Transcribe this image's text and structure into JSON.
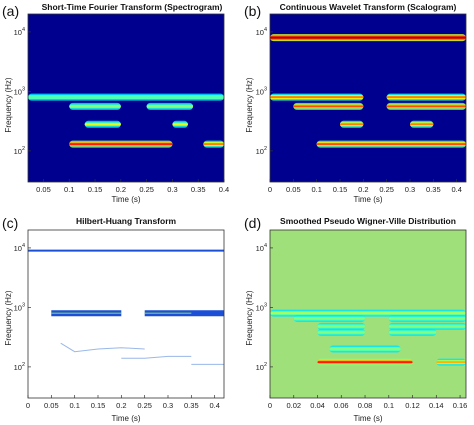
{
  "panels": [
    {
      "letter": "(a)",
      "title": "Short-Time Fourier Transform (Spectrogram)",
      "ylabel": "Frequency (Hz)",
      "xlabel": "Time (s)",
      "ytick_labels": [
        "10^4",
        "10^3",
        "10^2"
      ],
      "xtick_labels": [
        "0.05",
        "0.1",
        "0.15",
        "0.2",
        "0.25",
        "0.3",
        "0.35",
        "0.4"
      ]
    },
    {
      "letter": "(b)",
      "title": "Continuous Wavelet Transform (Scalogram)",
      "ylabel": "Frequency (Hz)",
      "xlabel": "Time (s)",
      "ytick_labels": [
        "10^4",
        "10^3",
        "10^2"
      ],
      "xtick_labels": [
        "0",
        "0.05",
        "0.1",
        "0.15",
        "0.2",
        "0.25",
        "0.3",
        "0.35",
        "0.4"
      ]
    },
    {
      "letter": "(c)",
      "title": "Hilbert-Huang Transform",
      "ylabel": "Frequency (Hz)",
      "xlabel": "Time (s)",
      "ytick_labels": [
        "10^4",
        "10^3",
        "10^2"
      ],
      "xtick_labels": [
        "0",
        "0.05",
        "0.1",
        "0.15",
        "0.2",
        "0.25",
        "0.3",
        "0.35",
        "0.4"
      ]
    },
    {
      "letter": "(d)",
      "title": "Smoothed Pseudo Wigner-Ville Distribution",
      "ylabel": "Frequency (Hz)",
      "xlabel": "Time (s)",
      "ytick_labels": [
        "10^4",
        "10^3",
        "10^2"
      ],
      "xtick_labels": [
        "0",
        "0.02",
        "0.04",
        "0.06",
        "0.08",
        "0.1",
        "0.12",
        "0.14",
        "0.16"
      ]
    }
  ],
  "chart_data": [
    {
      "type": "heatmap",
      "title": "Short-Time Fourier Transform (Spectrogram)",
      "xlabel": "Time (s)",
      "ylabel": "Frequency (Hz)",
      "xlim": [
        0.02,
        0.4
      ],
      "ylim": [
        30,
        20000
      ],
      "yscale": "log",
      "background": "#00008f",
      "bands": [
        {
          "f": 800,
          "t0": 0.02,
          "t1": 0.4,
          "level": 0.45
        },
        {
          "f": 560,
          "t0": 0.1,
          "t1": 0.2,
          "level": 0.5
        },
        {
          "f": 560,
          "t0": 0.25,
          "t1": 0.34,
          "level": 0.5
        },
        {
          "f": 280,
          "t0": 0.13,
          "t1": 0.2,
          "level": 0.6
        },
        {
          "f": 280,
          "t0": 0.3,
          "t1": 0.33,
          "level": 0.6
        },
        {
          "f": 130,
          "t0": 0.1,
          "t1": 0.3,
          "level": 0.85
        },
        {
          "f": 130,
          "t0": 0.36,
          "t1": 0.4,
          "level": 0.75
        }
      ]
    },
    {
      "type": "heatmap",
      "title": "Continuous Wavelet Transform (Scalogram)",
      "xlabel": "Time (s)",
      "ylabel": "Frequency (Hz)",
      "xlim": [
        0,
        0.42
      ],
      "ylim": [
        30,
        20000
      ],
      "yscale": "log",
      "background": "#00008f",
      "bands": [
        {
          "f": 8000,
          "t0": 0,
          "t1": 0.42,
          "level": 0.95
        },
        {
          "f": 800,
          "t0": 0,
          "t1": 0.2,
          "level": 0.75
        },
        {
          "f": 800,
          "t0": 0.25,
          "t1": 0.42,
          "level": 0.75
        },
        {
          "f": 560,
          "t0": 0.05,
          "t1": 0.2,
          "level": 0.8
        },
        {
          "f": 560,
          "t0": 0.25,
          "t1": 0.42,
          "level": 0.8
        },
        {
          "f": 280,
          "t0": 0.15,
          "t1": 0.2,
          "level": 0.75
        },
        {
          "f": 280,
          "t0": 0.3,
          "t1": 0.35,
          "level": 0.75
        },
        {
          "f": 130,
          "t0": 0.1,
          "t1": 0.42,
          "level": 0.8
        }
      ]
    },
    {
      "type": "scatter",
      "title": "Hilbert-Huang Transform",
      "xlabel": "Time (s)",
      "ylabel": "Frequency (Hz)",
      "xlim": [
        0,
        0.42
      ],
      "ylim": [
        30,
        20000
      ],
      "yscale": "log",
      "series": [
        {
          "color": "#1a4fd6",
          "points": [
            [
              0,
              9000
            ],
            [
              0.42,
              9000
            ]
          ]
        },
        {
          "color": "#1a4fd6",
          "points": [
            [
              0.05,
              800
            ],
            [
              0.2,
              800
            ]
          ]
        },
        {
          "color": "#1a4fd6",
          "points": [
            [
              0.25,
              800
            ],
            [
              0.42,
              800
            ]
          ]
        },
        {
          "color": "#9ab8e8",
          "points": [
            [
              0.07,
              250
            ],
            [
              0.1,
              180
            ],
            [
              0.15,
              200
            ],
            [
              0.2,
              210
            ],
            [
              0.25,
              200
            ]
          ]
        },
        {
          "color": "#9ab8e8",
          "points": [
            [
              0.2,
              140
            ],
            [
              0.25,
              140
            ],
            [
              0.3,
              150
            ],
            [
              0.35,
              150
            ]
          ]
        },
        {
          "color": "#9ab8e8",
          "points": [
            [
              0.35,
              110
            ],
            [
              0.42,
              110
            ]
          ]
        }
      ]
    },
    {
      "type": "heatmap",
      "title": "Smoothed Pseudo Wigner-Ville Distribution",
      "xlabel": "Time (s)",
      "ylabel": "Frequency (Hz)",
      "xlim": [
        0,
        0.165
      ],
      "ylim": [
        30,
        20000
      ],
      "yscale": "log",
      "background": "#9fe07a",
      "bands": [
        {
          "f": 800,
          "t0": 0,
          "t1": 0.165,
          "level": 0.55
        },
        {
          "f": 650,
          "t0": 0.02,
          "t1": 0.08,
          "level": 0.5
        },
        {
          "f": 650,
          "t0": 0.1,
          "t1": 0.165,
          "level": 0.5
        },
        {
          "f": 480,
          "t0": 0.04,
          "t1": 0.08,
          "level": 0.5
        },
        {
          "f": 480,
          "t0": 0.1,
          "t1": 0.165,
          "level": 0.5
        },
        {
          "f": 380,
          "t0": 0.04,
          "t1": 0.08,
          "level": 0.5
        },
        {
          "f": 380,
          "t0": 0.1,
          "t1": 0.14,
          "level": 0.5
        },
        {
          "f": 200,
          "t0": 0.05,
          "t1": 0.11,
          "level": 0.5
        },
        {
          "f": 120,
          "t0": 0.04,
          "t1": 0.12,
          "level": 0.85
        },
        {
          "f": 120,
          "t0": 0.14,
          "t1": 0.165,
          "level": 0.7
        }
      ]
    }
  ]
}
